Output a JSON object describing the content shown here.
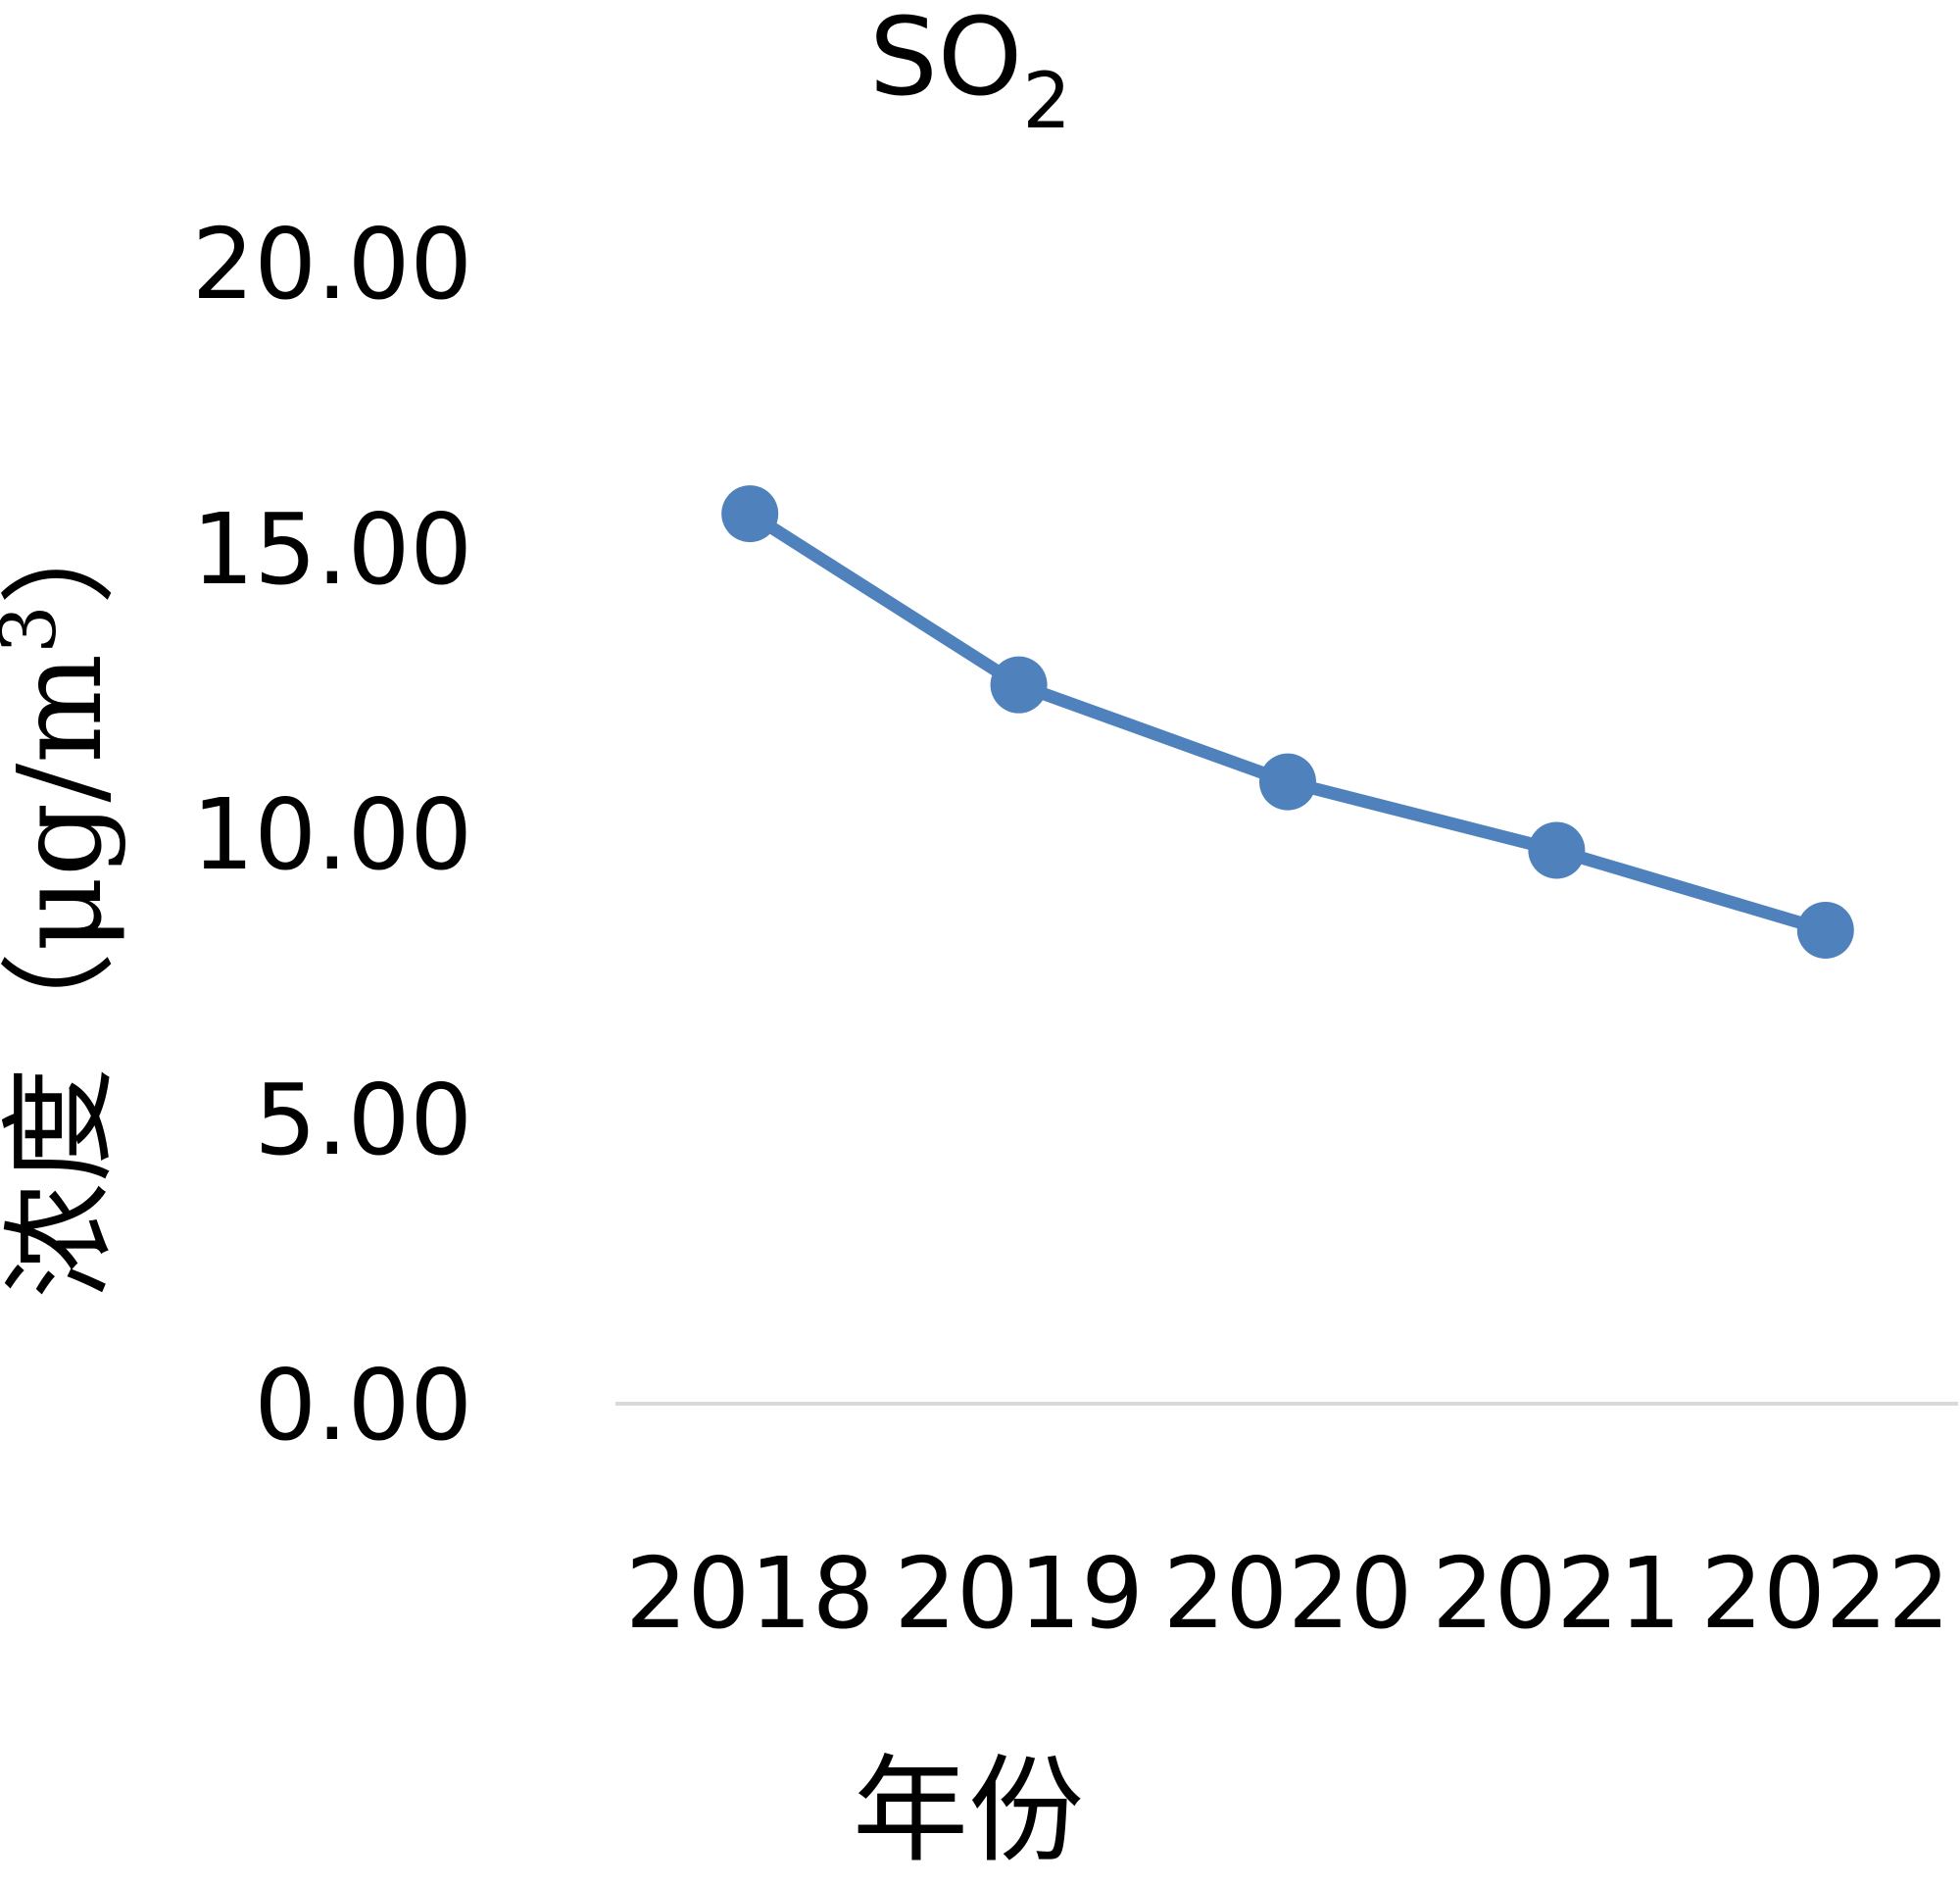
{
  "chart_data": {
    "type": "line",
    "title": "SO2",
    "title_main": "SO",
    "title_subscript": "2",
    "xlabel": "年份",
    "ylabel": "浓度（μg/m3）",
    "ylabel_main": "浓度（μg/m",
    "ylabel_superscript": "3",
    "ylabel_close": "）",
    "categories": [
      "2018",
      "2019",
      "2020",
      "2021",
      "2022"
    ],
    "series": [
      {
        "values": [
          15.6,
          12.6,
          10.9,
          9.7,
          8.3
        ],
        "color": "#4F81BD"
      }
    ],
    "y_ticks": [
      "0.00",
      "5.00",
      "10.00",
      "15.00",
      "20.00"
    ],
    "ylim": [
      0,
      20
    ],
    "grid": false,
    "baseline_color": "#D9D9D9",
    "legend": "none"
  }
}
